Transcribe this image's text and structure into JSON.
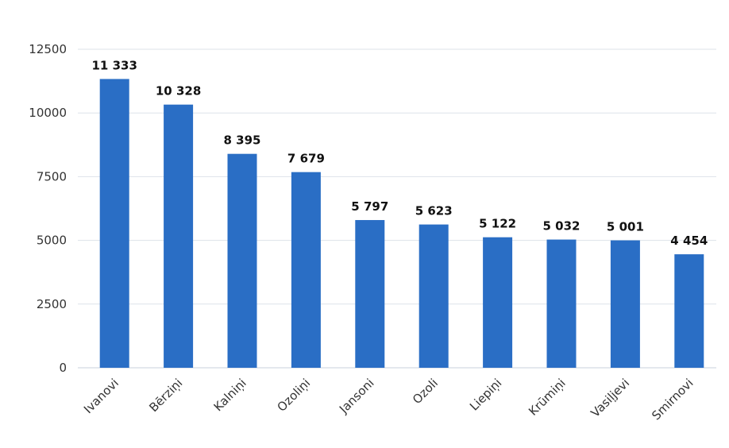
{
  "chart_data": {
    "type": "bar",
    "categories": [
      "Ivanovi",
      "Bērziņi",
      "Kalniņi",
      "Ozoliņi",
      "Jansoni",
      "Ozoli",
      "Liepiņi",
      "Krūmiņi",
      "Vasiļjevi",
      "Smirnovi"
    ],
    "values": [
      11333,
      10328,
      8395,
      7679,
      5797,
      5623,
      5122,
      5032,
      5001,
      4454
    ],
    "data_labels": [
      "11 333",
      "10 328",
      "8 395",
      "7 679",
      "5 797",
      "5 623",
      "5 122",
      "5 032",
      "5 001",
      "4 454"
    ],
    "title": "",
    "xlabel": "",
    "ylabel": "",
    "ylim": [
      0,
      12500
    ],
    "yticks": [
      0,
      2500,
      5000,
      7500,
      10000,
      12500
    ],
    "ytick_labels": [
      "0",
      "2500",
      "5000",
      "7500",
      "10000",
      "12500"
    ],
    "grid": true,
    "legend": "none",
    "colors": {
      "bar": "#2a6ec5",
      "grid": "#dde3ea",
      "axis": "#c8d2dd"
    }
  }
}
